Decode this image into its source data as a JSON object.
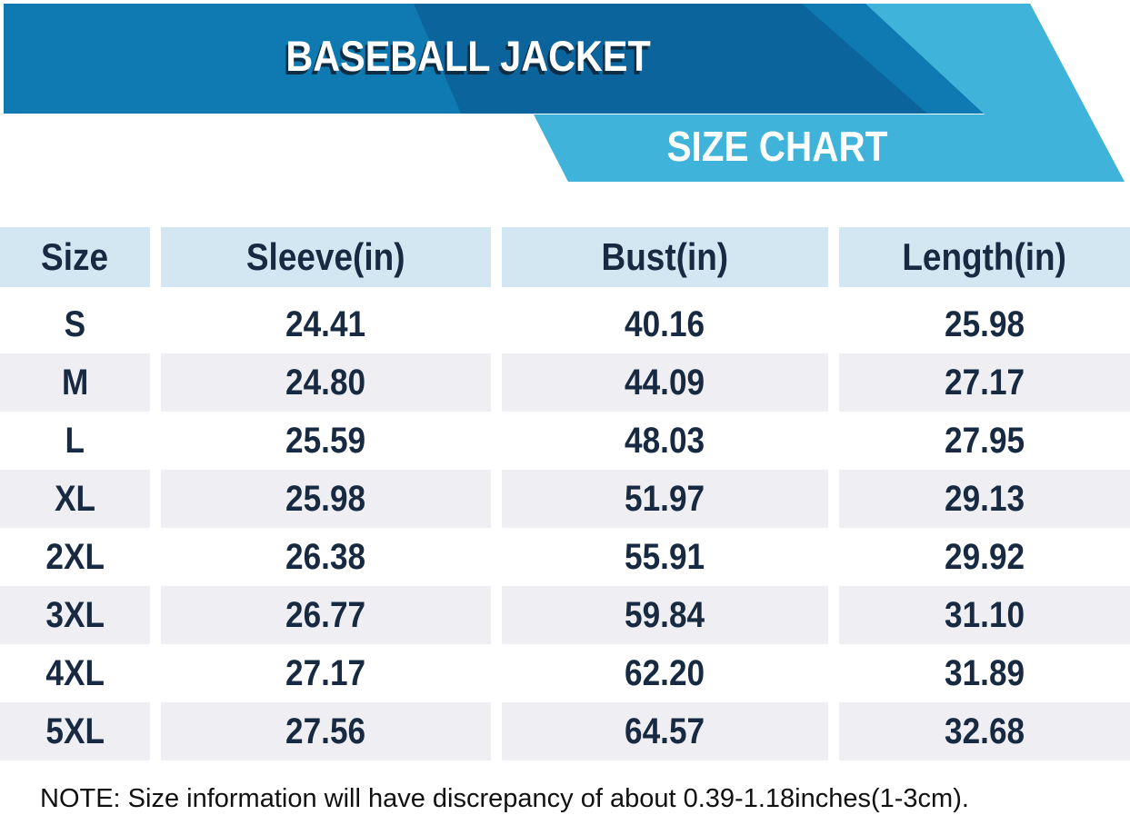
{
  "banner": {
    "title": "BASEBALL JACKET",
    "subtitle": "SIZE CHART",
    "colors": {
      "base_blue": "#0e7ab1",
      "dark_blue": "#0b649c",
      "light_blue": "#3fb3d9"
    }
  },
  "chart_data": {
    "type": "table",
    "title": "BASEBALL JACKET",
    "subtitle": "SIZE CHART",
    "columns": [
      "Size",
      "Sleeve(in)",
      "Bust(in)",
      "Length(in)"
    ],
    "rows": [
      [
        "S",
        "24.41",
        "40.16",
        "25.98"
      ],
      [
        "M",
        "24.80",
        "44.09",
        "27.17"
      ],
      [
        "L",
        "25.59",
        "48.03",
        "27.95"
      ],
      [
        "XL",
        "25.98",
        "51.97",
        "29.13"
      ],
      [
        "2XL",
        "26.38",
        "55.91",
        "29.92"
      ],
      [
        "3XL",
        "26.77",
        "59.84",
        "31.10"
      ],
      [
        "4XL",
        "27.17",
        "62.20",
        "31.89"
      ],
      [
        "5XL",
        "27.56",
        "64.57",
        "32.68"
      ]
    ],
    "layout": {
      "header_bg": "#d3e7f2",
      "alt_row_bg": "#efeef3",
      "text_color": "#172a41",
      "row_striping": "even rows white, odd rows gray starting from second data row"
    }
  },
  "note": {
    "text": "NOTE: Size information will have discrepancy of about 0.39-1.18inches(1-3cm)."
  }
}
